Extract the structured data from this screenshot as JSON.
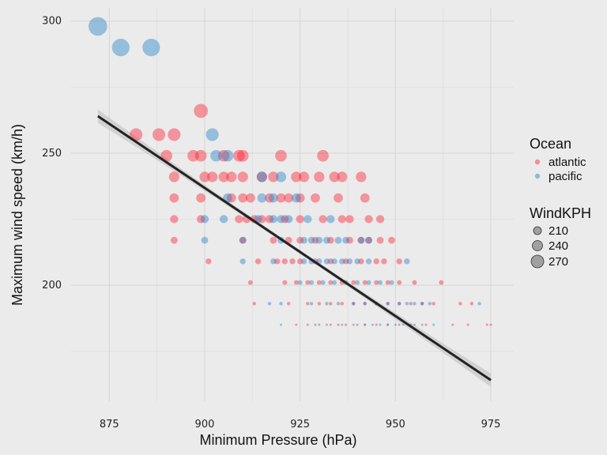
{
  "chart_data": {
    "type": "scatter",
    "title": "",
    "xlabel": "Minimum Pressure (hPa)",
    "ylabel": "Maximum wind speed (km/h)",
    "xlim": [
      865,
      981
    ],
    "ylim": [
      156,
      305
    ],
    "x_ticks": [
      875,
      900,
      925,
      950,
      975
    ],
    "y_ticks": [
      200,
      250,
      300
    ],
    "grid": true,
    "size_variable": "WindKPH",
    "legend_position": "right",
    "colors": {
      "atlantic": "#ff1a2e",
      "pacific": "#1f7fc8",
      "trend": "#222222",
      "band": "#c8c8c8"
    },
    "legend": {
      "color_title": "Ocean",
      "color_entries": [
        "atlantic",
        "pacific"
      ],
      "size_title": "WindKPH",
      "size_entries": [
        "210",
        "240",
        "270"
      ]
    },
    "trend_line": {
      "x": [
        872,
        975
      ],
      "y": [
        264,
        164
      ]
    },
    "series": [
      {
        "name": "atlantic",
        "points": [
          [
            882,
            257
          ],
          [
            888,
            257
          ],
          [
            892,
            257
          ],
          [
            899,
            266
          ],
          [
            890,
            249
          ],
          [
            897,
            249
          ],
          [
            899,
            249
          ],
          [
            905,
            249
          ],
          [
            909,
            249
          ],
          [
            910,
            249
          ],
          [
            920,
            249
          ],
          [
            931,
            249
          ],
          [
            892,
            241
          ],
          [
            900,
            241
          ],
          [
            902,
            241
          ],
          [
            905,
            241
          ],
          [
            907,
            241
          ],
          [
            910,
            241
          ],
          [
            915,
            241
          ],
          [
            918,
            241
          ],
          [
            924,
            241
          ],
          [
            926,
            241
          ],
          [
            930,
            241
          ],
          [
            934,
            241
          ],
          [
            936,
            241
          ],
          [
            941,
            241
          ],
          [
            892,
            233
          ],
          [
            899,
            233
          ],
          [
            907,
            233
          ],
          [
            910,
            233
          ],
          [
            912,
            233
          ],
          [
            917,
            233
          ],
          [
            920,
            233
          ],
          [
            922,
            233
          ],
          [
            925,
            233
          ],
          [
            929,
            233
          ],
          [
            935,
            233
          ],
          [
            942,
            233
          ],
          [
            892,
            225
          ],
          [
            899,
            225
          ],
          [
            909,
            225
          ],
          [
            911,
            225
          ],
          [
            913,
            225
          ],
          [
            915,
            225
          ],
          [
            917,
            225
          ],
          [
            921,
            225
          ],
          [
            925,
            225
          ],
          [
            931,
            225
          ],
          [
            936,
            225
          ],
          [
            938,
            225
          ],
          [
            943,
            225
          ],
          [
            946,
            225
          ],
          [
            892,
            217
          ],
          [
            910,
            217
          ],
          [
            918,
            217
          ],
          [
            922,
            217
          ],
          [
            925,
            217
          ],
          [
            929,
            217
          ],
          [
            933,
            217
          ],
          [
            938,
            217
          ],
          [
            941,
            217
          ],
          [
            943,
            217
          ],
          [
            946,
            217
          ],
          [
            949,
            217
          ],
          [
            901,
            209
          ],
          [
            914,
            209
          ],
          [
            919,
            209
          ],
          [
            921,
            209
          ],
          [
            923,
            209
          ],
          [
            925,
            209
          ],
          [
            929,
            209
          ],
          [
            933,
            209
          ],
          [
            937,
            209
          ],
          [
            941,
            209
          ],
          [
            945,
            209
          ],
          [
            947,
            209
          ],
          [
            951,
            209
          ],
          [
            912,
            201
          ],
          [
            921,
            201
          ],
          [
            924,
            201
          ],
          [
            927,
            201
          ],
          [
            930,
            201
          ],
          [
            933,
            201
          ],
          [
            936,
            201
          ],
          [
            939,
            201
          ],
          [
            942,
            201
          ],
          [
            945,
            201
          ],
          [
            948,
            201
          ],
          [
            951,
            201
          ],
          [
            955,
            201
          ],
          [
            962,
            201
          ],
          [
            913,
            193
          ],
          [
            922,
            193
          ],
          [
            927,
            193
          ],
          [
            930,
            193
          ],
          [
            933,
            193
          ],
          [
            936,
            193
          ],
          [
            939,
            193
          ],
          [
            942,
            193
          ],
          [
            945,
            193
          ],
          [
            948,
            193
          ],
          [
            951,
            193
          ],
          [
            954,
            193
          ],
          [
            957,
            193
          ],
          [
            960,
            193
          ],
          [
            967,
            193
          ],
          [
            970,
            193
          ],
          [
            924,
            185
          ],
          [
            927,
            185
          ],
          [
            930,
            185
          ],
          [
            933,
            185
          ],
          [
            935,
            185
          ],
          [
            937,
            185
          ],
          [
            940,
            185
          ],
          [
            942,
            185
          ],
          [
            945,
            185
          ],
          [
            948,
            185
          ],
          [
            951,
            185
          ],
          [
            954,
            185
          ],
          [
            958,
            185
          ],
          [
            965,
            185
          ],
          [
            969,
            185
          ],
          [
            974,
            185
          ],
          [
            975,
            185
          ]
        ]
      },
      {
        "name": "pacific",
        "points": [
          [
            872,
            298
          ],
          [
            878,
            290
          ],
          [
            886,
            290
          ],
          [
            902,
            257
          ],
          [
            903,
            249
          ],
          [
            906,
            249
          ],
          [
            915,
            241
          ],
          [
            920,
            241
          ],
          [
            906,
            233
          ],
          [
            915,
            233
          ],
          [
            918,
            233
          ],
          [
            924,
            233
          ],
          [
            900,
            225
          ],
          [
            905,
            225
          ],
          [
            914,
            225
          ],
          [
            918,
            225
          ],
          [
            920,
            225
          ],
          [
            922,
            225
          ],
          [
            927,
            225
          ],
          [
            933,
            225
          ],
          [
            900,
            217
          ],
          [
            910,
            217
          ],
          [
            920,
            217
          ],
          [
            926,
            217
          ],
          [
            928,
            217
          ],
          [
            930,
            217
          ],
          [
            932,
            217
          ],
          [
            935,
            217
          ],
          [
            937,
            217
          ],
          [
            941,
            217
          ],
          [
            943,
            217
          ],
          [
            910,
            209
          ],
          [
            918,
            209
          ],
          [
            926,
            209
          ],
          [
            928,
            209
          ],
          [
            930,
            209
          ],
          [
            932,
            209
          ],
          [
            934,
            209
          ],
          [
            936,
            209
          ],
          [
            938,
            209
          ],
          [
            940,
            209
          ],
          [
            943,
            209
          ],
          [
            953,
            209
          ],
          [
            925,
            201
          ],
          [
            928,
            201
          ],
          [
            931,
            201
          ],
          [
            934,
            201
          ],
          [
            937,
            201
          ],
          [
            940,
            201
          ],
          [
            943,
            201
          ],
          [
            946,
            201
          ],
          [
            949,
            201
          ],
          [
            917,
            193
          ],
          [
            920,
            193
          ],
          [
            928,
            193
          ],
          [
            932,
            193
          ],
          [
            935,
            193
          ],
          [
            939,
            193
          ],
          [
            942,
            193
          ],
          [
            945,
            193
          ],
          [
            948,
            193
          ],
          [
            951,
            193
          ],
          [
            953,
            193
          ],
          [
            955,
            193
          ],
          [
            957,
            193
          ],
          [
            959,
            193
          ],
          [
            972,
            193
          ],
          [
            920,
            185
          ],
          [
            929,
            185
          ],
          [
            932,
            185
          ],
          [
            936,
            185
          ],
          [
            939,
            185
          ],
          [
            942,
            185
          ],
          [
            944,
            185
          ],
          [
            946,
            185
          ],
          [
            948,
            185
          ],
          [
            950,
            185
          ],
          [
            952,
            185
          ],
          [
            955,
            185
          ],
          [
            957,
            185
          ],
          [
            960,
            185
          ]
        ]
      }
    ]
  }
}
